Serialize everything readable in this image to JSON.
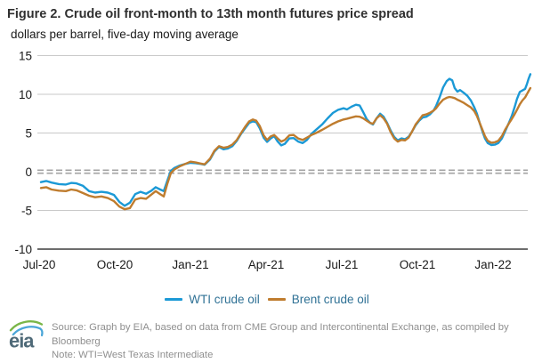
{
  "header": {
    "title": "Figure 2. Crude oil front-month to 13th month futures price spread",
    "subtitle": "dollars per barrel, five-day moving average"
  },
  "legend": [
    {
      "label": "WTI crude oil",
      "color": "#1b99d6"
    },
    {
      "label": "Brent crude oil",
      "color": "#bf7c2e"
    }
  ],
  "footer": {
    "source": "Source: Graph by EIA, based on data from CME Group and Intercontinental Exchange, as compiled by Bloomberg",
    "note": "Note: WTI=West Texas Intermediate",
    "logo_text": "eia"
  },
  "colors": {
    "wti": "#1b99d6",
    "brent": "#bf7c2e",
    "grid": "#c9c9c9",
    "axis": "#3d3d3d",
    "zero": "#a3a3a3",
    "tick_text": "#1a1a1a",
    "title_text": "#303030",
    "legend_text": "#2f7195",
    "footer_text": "#8f8f8f",
    "logo_green": "#7ab648",
    "logo_blue": "#4aa6d8",
    "logo_text": "#4f6a78"
  },
  "chart_data": {
    "type": "line",
    "title": "Figure 2. Crude oil front-month to 13th month futures price spread",
    "ylabel": "dollars per barrel, five-day moving average",
    "ylim": [
      -10,
      15
    ],
    "y_ticks": [
      15,
      10,
      5,
      0,
      -5,
      -10
    ],
    "x_unit": "months after Jul-2020",
    "x_ticks": [
      {
        "m": 0,
        "label": "Jul-20"
      },
      {
        "m": 3,
        "label": "Oct-20"
      },
      {
        "m": 6,
        "label": "Jan-21"
      },
      {
        "m": 9,
        "label": "Apr-21"
      },
      {
        "m": 12,
        "label": "Jul-21"
      },
      {
        "m": 15,
        "label": "Oct-21"
      },
      {
        "m": 18,
        "label": "Jan-22"
      }
    ],
    "zero_line": "dashed",
    "grid": true,
    "legend_position": "bottom",
    "series": [
      {
        "name": "WTI crude oil",
        "color": "#1b99d6"
      },
      {
        "name": "Brent crude oil",
        "color": "#bf7c2e"
      }
    ],
    "points_format": [
      "months_after_Jul2020",
      "wti_spread",
      "brent_spread"
    ],
    "points": [
      [
        0.07,
        -1.35,
        -2.1
      ],
      [
        0.28,
        -1.2,
        -2.0
      ],
      [
        0.49,
        -1.4,
        -2.3
      ],
      [
        0.78,
        -1.6,
        -2.45
      ],
      [
        1.06,
        -1.65,
        -2.5
      ],
      [
        1.27,
        -1.45,
        -2.3
      ],
      [
        1.48,
        -1.5,
        -2.4
      ],
      [
        1.73,
        -1.8,
        -2.75
      ],
      [
        1.98,
        -2.5,
        -3.1
      ],
      [
        2.22,
        -2.7,
        -3.3
      ],
      [
        2.47,
        -2.6,
        -3.2
      ],
      [
        2.72,
        -2.7,
        -3.4
      ],
      [
        2.97,
        -3.0,
        -3.8
      ],
      [
        3.18,
        -3.9,
        -4.5
      ],
      [
        3.39,
        -4.4,
        -4.85
      ],
      [
        3.6,
        -4.0,
        -4.7
      ],
      [
        3.81,
        -2.9,
        -3.6
      ],
      [
        4.02,
        -2.6,
        -3.4
      ],
      [
        4.24,
        -2.85,
        -3.5
      ],
      [
        4.45,
        -2.45,
        -2.95
      ],
      [
        4.62,
        -2.0,
        -2.5
      ],
      [
        4.8,
        -2.3,
        -2.9
      ],
      [
        4.94,
        -2.5,
        -3.2
      ],
      [
        5.08,
        -1.2,
        -1.6
      ],
      [
        5.22,
        0.1,
        -0.2
      ],
      [
        5.37,
        0.5,
        0.3
      ],
      [
        5.58,
        0.8,
        0.7
      ],
      [
        5.79,
        1.0,
        1.0
      ],
      [
        6.0,
        1.15,
        1.3
      ],
      [
        6.21,
        1.1,
        1.2
      ],
      [
        6.42,
        1.0,
        1.05
      ],
      [
        6.56,
        0.9,
        0.95
      ],
      [
        6.78,
        1.6,
        1.7
      ],
      [
        6.95,
        2.6,
        2.7
      ],
      [
        7.13,
        3.2,
        3.3
      ],
      [
        7.31,
        2.9,
        3.1
      ],
      [
        7.48,
        3.0,
        3.2
      ],
      [
        7.66,
        3.3,
        3.5
      ],
      [
        7.84,
        4.0,
        4.1
      ],
      [
        8.01,
        4.9,
        5.0
      ],
      [
        8.19,
        5.7,
        5.9
      ],
      [
        8.33,
        6.3,
        6.5
      ],
      [
        8.47,
        6.5,
        6.75
      ],
      [
        8.61,
        6.4,
        6.6
      ],
      [
        8.75,
        5.6,
        5.9
      ],
      [
        8.9,
        4.4,
        4.7
      ],
      [
        9.04,
        3.85,
        4.1
      ],
      [
        9.18,
        4.3,
        4.55
      ],
      [
        9.32,
        4.6,
        4.75
      ],
      [
        9.46,
        3.9,
        4.3
      ],
      [
        9.6,
        3.4,
        3.9
      ],
      [
        9.74,
        3.6,
        4.1
      ],
      [
        9.92,
        4.3,
        4.7
      ],
      [
        10.09,
        4.35,
        4.75
      ],
      [
        10.27,
        3.9,
        4.3
      ],
      [
        10.45,
        3.7,
        4.1
      ],
      [
        10.62,
        4.1,
        4.4
      ],
      [
        10.8,
        4.9,
        4.75
      ],
      [
        11.01,
        5.5,
        5.05
      ],
      [
        11.22,
        6.1,
        5.4
      ],
      [
        11.44,
        6.9,
        5.8
      ],
      [
        11.65,
        7.6,
        6.2
      ],
      [
        11.86,
        8.0,
        6.5
      ],
      [
        12.07,
        8.2,
        6.75
      ],
      [
        12.21,
        8.05,
        6.85
      ],
      [
        12.39,
        8.4,
        7.0
      ],
      [
        12.56,
        8.65,
        7.15
      ],
      [
        12.71,
        8.55,
        7.1
      ],
      [
        12.85,
        7.7,
        6.9
      ],
      [
        12.99,
        6.8,
        6.6
      ],
      [
        13.13,
        6.3,
        6.3
      ],
      [
        13.24,
        6.1,
        6.2
      ],
      [
        13.38,
        6.9,
        6.9
      ],
      [
        13.52,
        7.5,
        7.3
      ],
      [
        13.66,
        7.1,
        6.9
      ],
      [
        13.8,
        6.3,
        6.2
      ],
      [
        13.94,
        5.3,
        5.1
      ],
      [
        14.08,
        4.5,
        4.3
      ],
      [
        14.22,
        4.05,
        3.9
      ],
      [
        14.37,
        4.3,
        4.1
      ],
      [
        14.51,
        4.2,
        4.05
      ],
      [
        14.65,
        4.5,
        4.4
      ],
      [
        14.79,
        5.2,
        5.2
      ],
      [
        14.93,
        6.0,
        6.1
      ],
      [
        15.07,
        6.6,
        6.7
      ],
      [
        15.21,
        7.0,
        7.3
      ],
      [
        15.35,
        7.1,
        7.4
      ],
      [
        15.49,
        7.4,
        7.6
      ],
      [
        15.64,
        7.9,
        7.9
      ],
      [
        15.74,
        8.5,
        8.2
      ],
      [
        15.88,
        9.6,
        8.8
      ],
      [
        16.02,
        10.9,
        9.3
      ],
      [
        16.16,
        11.7,
        9.55
      ],
      [
        16.27,
        12.0,
        9.65
      ],
      [
        16.38,
        11.8,
        9.6
      ],
      [
        16.48,
        10.8,
        9.5
      ],
      [
        16.59,
        10.35,
        9.3
      ],
      [
        16.69,
        10.55,
        9.15
      ],
      [
        16.84,
        10.2,
        8.9
      ],
      [
        16.98,
        9.8,
        8.6
      ],
      [
        17.12,
        9.2,
        8.3
      ],
      [
        17.26,
        8.3,
        7.8
      ],
      [
        17.36,
        7.5,
        7.2
      ],
      [
        17.47,
        6.3,
        6.3
      ],
      [
        17.58,
        5.2,
        5.4
      ],
      [
        17.68,
        4.3,
        4.6
      ],
      [
        17.79,
        3.7,
        4.0
      ],
      [
        17.93,
        3.45,
        3.75
      ],
      [
        18.07,
        3.5,
        3.8
      ],
      [
        18.21,
        3.7,
        4.0
      ],
      [
        18.35,
        4.3,
        4.6
      ],
      [
        18.49,
        5.3,
        5.5
      ],
      [
        18.64,
        6.4,
        6.3
      ],
      [
        18.74,
        7.2,
        6.8
      ],
      [
        18.85,
        8.3,
        7.4
      ],
      [
        18.95,
        9.4,
        8.0
      ],
      [
        19.06,
        10.3,
        8.7
      ],
      [
        19.16,
        10.5,
        9.2
      ],
      [
        19.27,
        10.7,
        9.6
      ],
      [
        19.34,
        11.3,
        10.0
      ],
      [
        19.41,
        12.0,
        10.4
      ],
      [
        19.48,
        12.6,
        10.8
      ]
    ]
  }
}
